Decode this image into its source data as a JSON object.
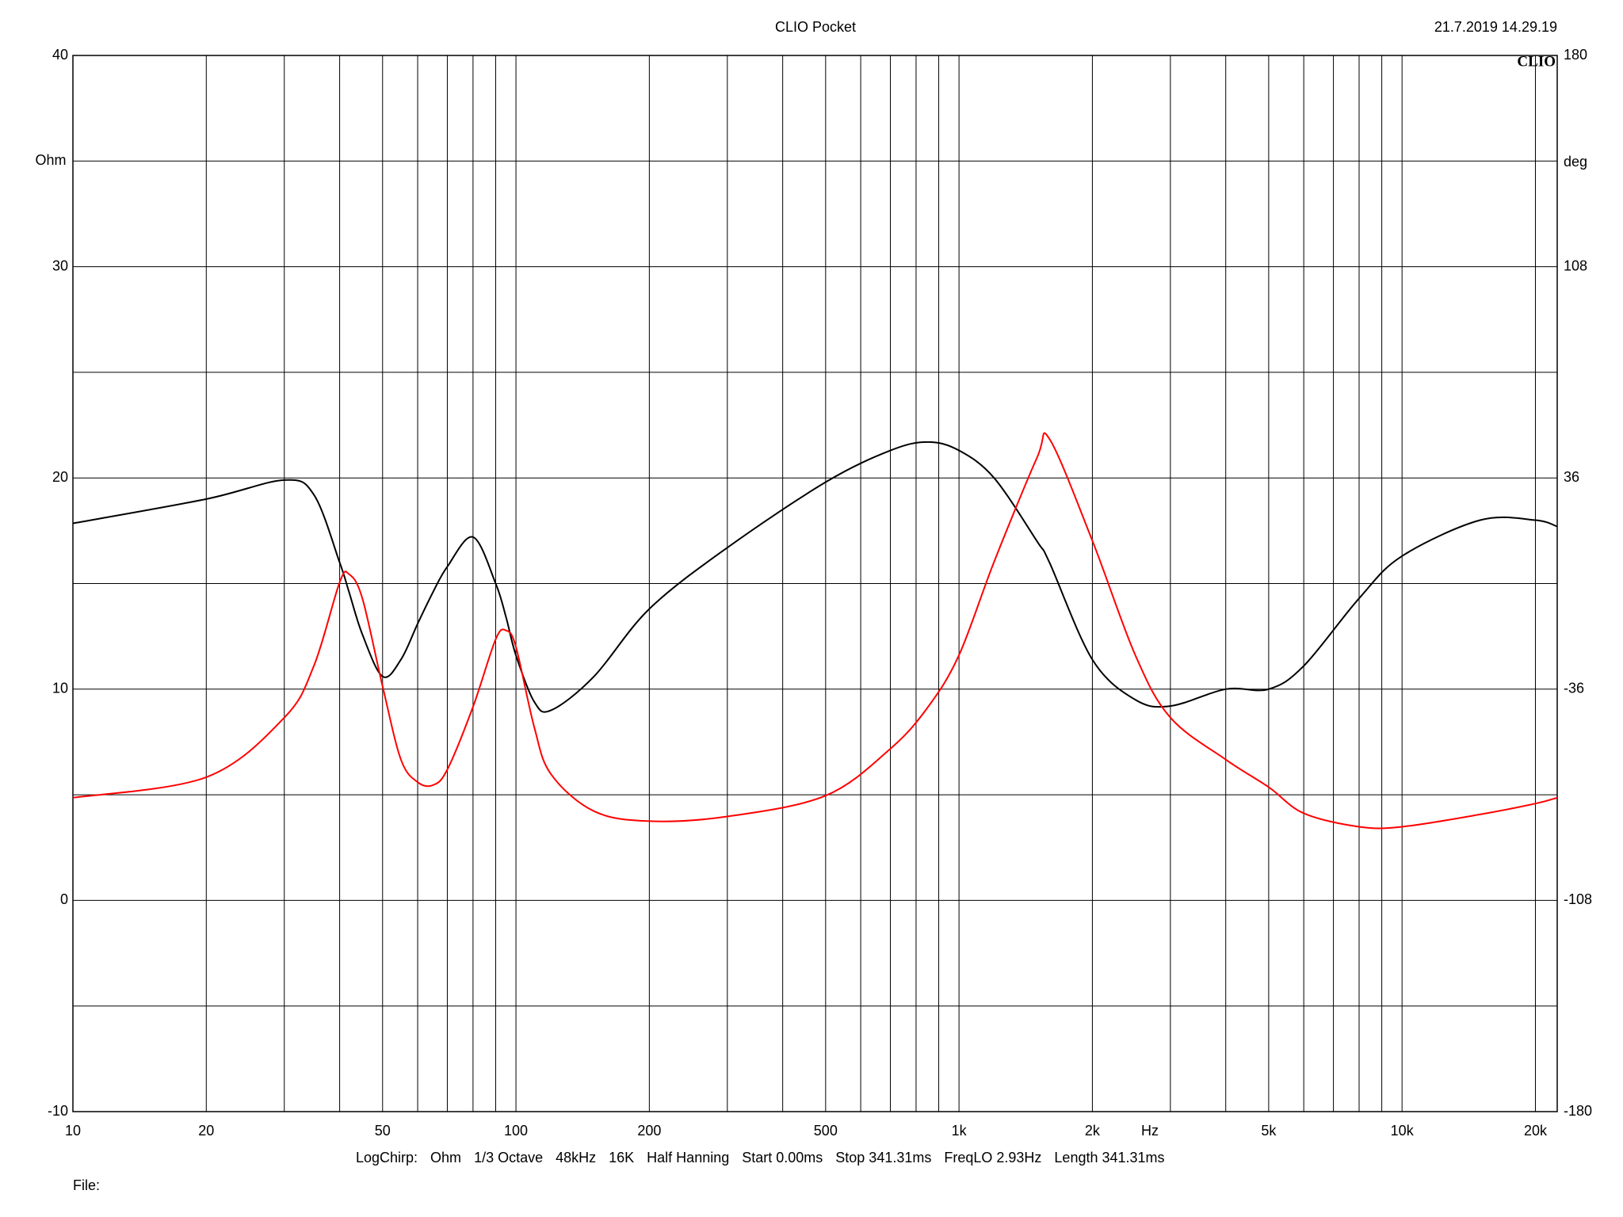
{
  "chart_data": {
    "type": "line",
    "title": "CLIO Pocket",
    "timestamp": "21.7.2019 14.29.19",
    "logo": "CLIO",
    "ylabel": "Ohm",
    "y2label": "deg",
    "x_unit": "Hz",
    "log_x": true,
    "grid": true,
    "xlim": [
      10,
      22400
    ],
    "xticks": [
      10,
      20,
      50,
      100,
      200,
      500,
      {
        "value": 1000,
        "label": "1k"
      },
      {
        "value": 2000,
        "label": "2k"
      },
      {
        "value": 5000,
        "label": "5k"
      },
      {
        "value": 10000,
        "label": "10k"
      },
      {
        "value": 20000,
        "label": "20k"
      }
    ],
    "xgrid": [
      10,
      20,
      30,
      40,
      50,
      60,
      70,
      80,
      90,
      100,
      200,
      300,
      400,
      500,
      600,
      700,
      800,
      900,
      1000,
      2000,
      3000,
      4000,
      5000,
      6000,
      7000,
      8000,
      9000,
      10000,
      20000
    ],
    "ylim": [
      -10,
      40
    ],
    "yticks": [
      -10,
      0,
      10,
      20,
      30,
      40
    ],
    "ygrid": [
      -10,
      -5,
      0,
      5,
      10,
      15,
      20,
      25,
      30,
      35,
      40
    ],
    "y2lim": [
      -180,
      180
    ],
    "y2ticks": [
      -180,
      -108,
      -36,
      36,
      108,
      180
    ],
    "x": [
      10,
      20,
      30,
      35,
      40,
      42,
      45,
      50,
      55,
      60,
      65,
      70,
      80,
      90,
      95,
      100,
      110,
      120,
      150,
      200,
      300,
      500,
      700,
      850,
      1000,
      1200,
      1500,
      1600,
      2000,
      2500,
      3000,
      4000,
      5000,
      6000,
      8000,
      10000,
      15000,
      20000,
      22400
    ],
    "series": [
      {
        "color": "#000000",
        "values": [
          17.85,
          19.0,
          19.9,
          19.2,
          16.0,
          14.6,
          12.6,
          10.6,
          11.4,
          13.1,
          14.6,
          15.8,
          17.2,
          15.0,
          13.4,
          11.6,
          9.4,
          9.0,
          10.6,
          13.8,
          16.7,
          19.8,
          21.3,
          21.7,
          21.3,
          20.0,
          17.0,
          16.0,
          11.4,
          9.5,
          9.2,
          10.0,
          10.0,
          11.1,
          14.3,
          16.3,
          18.0,
          18.0,
          17.7
        ]
      },
      {
        "color": "#ff0000",
        "axis": "y2",
        "values": [
          -73,
          -66,
          -45.7,
          -28,
          0.4,
          3.2,
          -5,
          -35,
          -60,
          -67.7,
          -68.7,
          -63.4,
          -42,
          -19,
          -16,
          -21.6,
          -49,
          -65,
          -77.6,
          -81,
          -79.4,
          -72.3,
          -56.3,
          -42.2,
          -24.4,
          7.4,
          42.9,
          49.3,
          14.6,
          -24.4,
          -45.7,
          -60,
          -69.4,
          -78.3,
          -82.9,
          -82.9,
          -78.7,
          -75,
          -73
        ]
      }
    ],
    "settings": [
      "LogChirp:",
      "Ohm",
      "1/3 Octave",
      "48kHz",
      "16K",
      "Half Hanning",
      "Start 0.00ms",
      "Stop 341.31ms",
      "FreqLO 2.93Hz",
      "Length 341.31ms"
    ],
    "file_label": "File:"
  }
}
